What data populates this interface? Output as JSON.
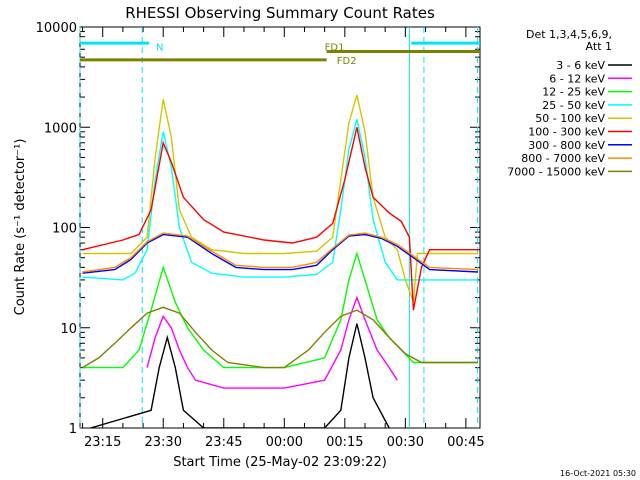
{
  "chart_data": {
    "type": "line",
    "title": "RHESSI Observing Summary Count Rates",
    "xlabel": "Start Time (25-May-02 23:09:22)",
    "ylabel": "Count Rate (s⁻¹ detector⁻¹)",
    "yscale": "log",
    "ylim": [
      1,
      10000
    ],
    "xlim_minutes_after_23_00": [
      9.37,
      108.5
    ],
    "x_ticks": [
      {
        "label": "23:15",
        "t": 15
      },
      {
        "label": "23:30",
        "t": 30
      },
      {
        "label": "23:45",
        "t": 45
      },
      {
        "label": "00:00",
        "t": 60
      },
      {
        "label": "00:15",
        "t": 75
      },
      {
        "label": "00:30",
        "t": 90
      },
      {
        "label": "00:45",
        "t": 105
      }
    ],
    "y_ticks": [
      {
        "label": "1",
        "v": 1
      },
      {
        "label": "10",
        "v": 10
      },
      {
        "label": "100",
        "v": 100
      },
      {
        "label": "1000",
        "v": 1000
      },
      {
        "label": "10000",
        "v": 10000
      }
    ],
    "legend": {
      "position": "right",
      "header": [
        "Det 1,3,4,5,6,9,",
        "Att 1"
      ]
    },
    "series": [
      {
        "name": "3 - 6 keV",
        "color": "#000000",
        "points": [
          [
            12,
            1
          ],
          [
            27,
            1.5
          ],
          [
            29,
            4
          ],
          [
            31,
            8
          ],
          [
            33,
            4
          ],
          [
            35,
            1.5
          ],
          [
            40,
            1
          ],
          [
            70,
            1
          ],
          [
            74,
            1.5
          ],
          [
            76,
            5
          ],
          [
            78,
            11
          ],
          [
            80,
            5
          ],
          [
            82,
            2
          ],
          [
            86,
            1
          ]
        ]
      },
      {
        "name": "6 - 12 keV",
        "color": "#ff00ff",
        "points": [
          [
            26,
            4
          ],
          [
            28,
            8
          ],
          [
            30,
            13
          ],
          [
            32,
            10
          ],
          [
            34,
            6
          ],
          [
            36,
            4
          ],
          [
            38,
            3
          ],
          [
            45,
            2.5
          ],
          [
            60,
            2.5
          ],
          [
            70,
            3
          ],
          [
            74,
            6
          ],
          [
            76,
            12
          ],
          [
            78,
            20
          ],
          [
            80,
            12
          ],
          [
            83,
            6
          ],
          [
            86,
            4
          ],
          [
            88,
            3
          ]
        ]
      },
      {
        "name": "12 - 25 keV",
        "color": "#00ff00",
        "points": [
          [
            10,
            4
          ],
          [
            15,
            4
          ],
          [
            20,
            4
          ],
          [
            24,
            6
          ],
          [
            27,
            15
          ],
          [
            30,
            40
          ],
          [
            33,
            18
          ],
          [
            36,
            10
          ],
          [
            40,
            6
          ],
          [
            45,
            4
          ],
          [
            60,
            4
          ],
          [
            70,
            5
          ],
          [
            74,
            12
          ],
          [
            76,
            30
          ],
          [
            78,
            55
          ],
          [
            80,
            30
          ],
          [
            83,
            12
          ],
          [
            86,
            8
          ],
          [
            89,
            6
          ],
          [
            92,
            4.5
          ],
          [
            108,
            4.5
          ]
        ]
      },
      {
        "name": "25 - 50 keV",
        "color": "#00ffff",
        "points": [
          [
            10,
            32
          ],
          [
            20,
            30
          ],
          [
            23,
            35
          ],
          [
            26,
            60
          ],
          [
            28,
            300
          ],
          [
            30,
            900
          ],
          [
            32,
            400
          ],
          [
            34,
            100
          ],
          [
            37,
            45
          ],
          [
            42,
            35
          ],
          [
            50,
            32
          ],
          [
            60,
            32
          ],
          [
            68,
            34
          ],
          [
            72,
            45
          ],
          [
            74,
            150
          ],
          [
            76,
            600
          ],
          [
            78,
            1200
          ],
          [
            80,
            500
          ],
          [
            82,
            120
          ],
          [
            85,
            45
          ],
          [
            88,
            30
          ],
          [
            93,
            30
          ],
          [
            108,
            30
          ]
        ]
      },
      {
        "name": "50 - 100 keV",
        "color": "#d4c400",
        "points": [
          [
            10,
            55
          ],
          [
            22,
            55
          ],
          [
            26,
            80
          ],
          [
            28,
            500
          ],
          [
            30,
            1900
          ],
          [
            32,
            800
          ],
          [
            34,
            150
          ],
          [
            37,
            80
          ],
          [
            42,
            60
          ],
          [
            50,
            55
          ],
          [
            60,
            55
          ],
          [
            68,
            58
          ],
          [
            72,
            80
          ],
          [
            74,
            300
          ],
          [
            76,
            1100
          ],
          [
            78,
            2100
          ],
          [
            80,
            900
          ],
          [
            82,
            200
          ],
          [
            85,
            80
          ],
          [
            88,
            60
          ],
          [
            90,
            30
          ],
          [
            92,
            18
          ],
          [
            93,
            55
          ],
          [
            108,
            55
          ]
        ]
      },
      {
        "name": "100 - 300 keV",
        "color": "#ff0000",
        "points": [
          [
            10,
            60
          ],
          [
            20,
            75
          ],
          [
            24,
            85
          ],
          [
            27,
            150
          ],
          [
            30,
            700
          ],
          [
            32,
            450
          ],
          [
            35,
            200
          ],
          [
            40,
            120
          ],
          [
            45,
            90
          ],
          [
            55,
            75
          ],
          [
            62,
            70
          ],
          [
            68,
            80
          ],
          [
            72,
            110
          ],
          [
            75,
            300
          ],
          [
            78,
            1000
          ],
          [
            80,
            400
          ],
          [
            82,
            200
          ],
          [
            86,
            140
          ],
          [
            89,
            115
          ],
          [
            91,
            80
          ],
          [
            92,
            15
          ],
          [
            94,
            40
          ],
          [
            96,
            60
          ],
          [
            108,
            60
          ]
        ]
      },
      {
        "name": "300 - 800 keV",
        "color": "#0000ff",
        "points": [
          [
            10,
            35
          ],
          [
            18,
            38
          ],
          [
            22,
            48
          ],
          [
            26,
            70
          ],
          [
            30,
            85
          ],
          [
            36,
            80
          ],
          [
            42,
            55
          ],
          [
            48,
            40
          ],
          [
            55,
            38
          ],
          [
            62,
            38
          ],
          [
            68,
            42
          ],
          [
            72,
            60
          ],
          [
            76,
            82
          ],
          [
            80,
            85
          ],
          [
            84,
            78
          ],
          [
            88,
            65
          ],
          [
            92,
            50
          ],
          [
            96,
            38
          ],
          [
            108,
            36
          ]
        ]
      },
      {
        "name": "800 - 7000 keV",
        "color": "#ff8c00",
        "points": [
          [
            10,
            36
          ],
          [
            18,
            40
          ],
          [
            22,
            50
          ],
          [
            26,
            72
          ],
          [
            30,
            88
          ],
          [
            36,
            82
          ],
          [
            42,
            58
          ],
          [
            48,
            42
          ],
          [
            55,
            40
          ],
          [
            62,
            40
          ],
          [
            68,
            45
          ],
          [
            72,
            62
          ],
          [
            76,
            84
          ],
          [
            80,
            88
          ],
          [
            84,
            80
          ],
          [
            88,
            68
          ],
          [
            92,
            52
          ],
          [
            96,
            40
          ],
          [
            108,
            38
          ]
        ]
      },
      {
        "name": "7000 - 15000 keV",
        "color": "#808000",
        "points": [
          [
            10,
            4
          ],
          [
            14,
            5
          ],
          [
            18,
            7
          ],
          [
            22,
            10
          ],
          [
            26,
            14
          ],
          [
            30,
            16
          ],
          [
            34,
            14
          ],
          [
            38,
            9
          ],
          [
            42,
            6
          ],
          [
            46,
            4.5
          ],
          [
            55,
            4
          ],
          [
            60,
            4
          ],
          [
            66,
            6
          ],
          [
            70,
            9
          ],
          [
            74,
            13
          ],
          [
            78,
            15
          ],
          [
            82,
            12
          ],
          [
            86,
            8
          ],
          [
            90,
            5.5
          ],
          [
            94,
            4.5
          ],
          [
            108,
            4.5
          ]
        ]
      }
    ],
    "annotations": [
      {
        "text": "N",
        "color": "#00e5ee",
        "t": 28.2,
        "level": 6400
      },
      {
        "text": "FD1",
        "color": "#808000",
        "t": 70,
        "level": 6400
      },
      {
        "text": "FD2",
        "color": "#808000",
        "t": 73,
        "level": 4700
      }
    ],
    "flag_bars": [
      {
        "color": "#00e5ee",
        "t0": 9.37,
        "t1": 26.5,
        "level": 6900
      },
      {
        "color": "#00e5ee",
        "t0": 91.5,
        "t1": 108.5,
        "level": 6900
      },
      {
        "color": "#808000",
        "t0": 9.37,
        "t1": 70.5,
        "level": 4700
      },
      {
        "color": "#808000",
        "t0": 70.5,
        "t1": 108.5,
        "level": 5700
      }
    ],
    "vlines": [
      {
        "t": 9.37,
        "style": "dashed",
        "color": "#00e5ee"
      },
      {
        "t": 24.8,
        "style": "dashed",
        "color": "#00e5ee"
      },
      {
        "t": 91.0,
        "style": "solid",
        "color": "#00e5ee"
      },
      {
        "t": 94.6,
        "style": "dashed",
        "color": "#00e5ee"
      },
      {
        "t": 107.9,
        "style": "dashed",
        "color": "#00e5ee"
      }
    ]
  },
  "footer_timestamp": "16-Oct-2021 05:30"
}
